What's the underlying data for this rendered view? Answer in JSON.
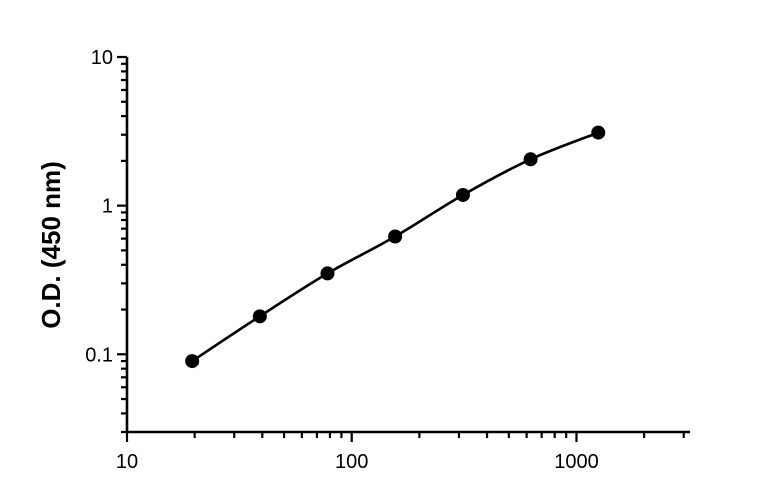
{
  "chart_data": {
    "type": "scatter",
    "title": "",
    "xlabel": "",
    "ylabel": "O.D. (450 nm)",
    "xscale": "log",
    "yscale": "log",
    "xlim": [
      10,
      3200
    ],
    "ylim": [
      0.03,
      10
    ],
    "x_tick_labels": [
      "10",
      "100",
      "1000"
    ],
    "y_tick_labels": [
      "0.1",
      "1",
      "10"
    ],
    "grid": false,
    "legend": "none",
    "fit_line": true,
    "series": [
      {
        "x": [
          19.5,
          39,
          78,
          156,
          312.5,
          625,
          1250
        ],
        "y": [
          0.09,
          0.18,
          0.35,
          0.62,
          1.18,
          2.05,
          3.1
        ]
      }
    ]
  }
}
